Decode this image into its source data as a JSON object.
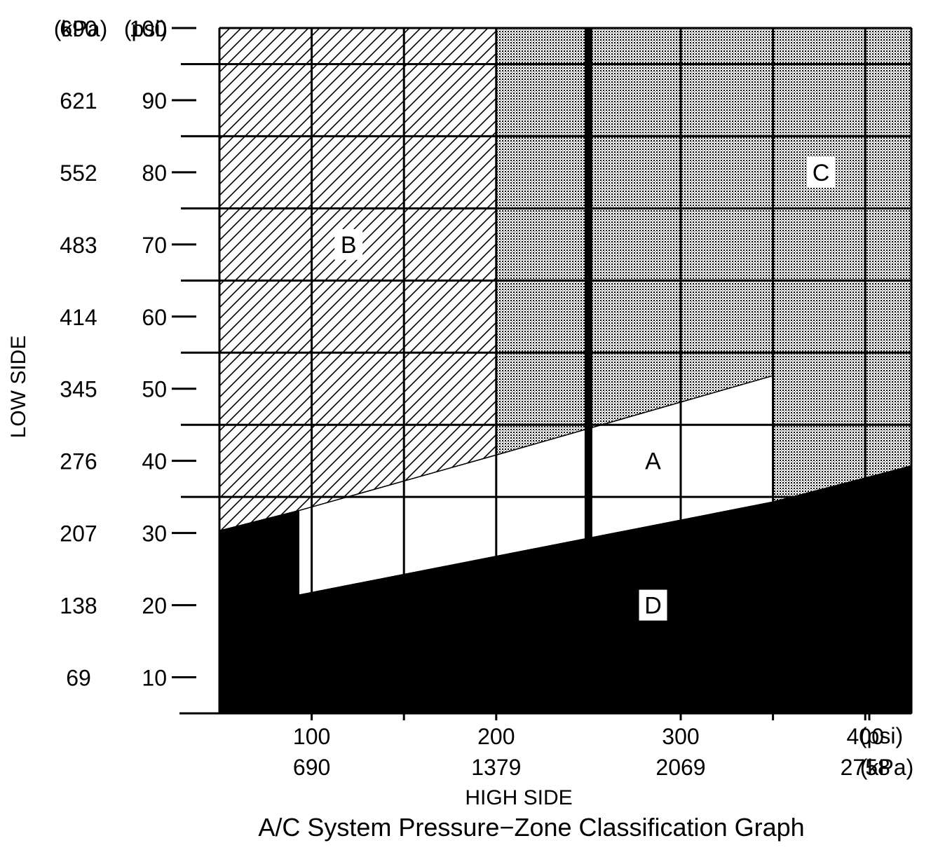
{
  "chart_data": {
    "type": "area",
    "title": "A/C System Pressure−Zone Classification Graph",
    "xlabel": "HIGH SIDE",
    "ylabel": "LOW SIDE",
    "x_unit_primary": "(psi)",
    "x_unit_secondary": "(kPa)",
    "y_unit_primary": "(psi)",
    "y_unit_secondary": "(kPa)",
    "xlim": [
      50,
      425
    ],
    "ylim": [
      5,
      100
    ],
    "grid": true,
    "x_ticks": [
      {
        "psi": 100,
        "psi_label": "100",
        "kpa_label": "690"
      },
      {
        "psi": 200,
        "psi_label": "200",
        "kpa_label": "1379"
      },
      {
        "psi": 300,
        "psi_label": "300",
        "kpa_label": "2069"
      },
      {
        "psi": 400,
        "psi_label": "400",
        "kpa_label": "2758"
      }
    ],
    "x_minor_ticks": [
      150,
      350
    ],
    "y_ticks": [
      {
        "psi": 100,
        "psi_label": "100",
        "kpa_label": "690"
      },
      {
        "psi": 90,
        "psi_label": "90",
        "kpa_label": "621"
      },
      {
        "psi": 80,
        "psi_label": "80",
        "kpa_label": "552"
      },
      {
        "psi": 70,
        "psi_label": "70",
        "kpa_label": "483"
      },
      {
        "psi": 60,
        "psi_label": "60",
        "kpa_label": "414"
      },
      {
        "psi": 50,
        "psi_label": "50",
        "kpa_label": "345"
      },
      {
        "psi": 40,
        "psi_label": "40",
        "kpa_label": "276"
      },
      {
        "psi": 30,
        "psi_label": "30",
        "kpa_label": "207"
      },
      {
        "psi": 20,
        "psi_label": "20",
        "kpa_label": "138"
      },
      {
        "psi": 10,
        "psi_label": "10",
        "kpa_label": "69"
      }
    ],
    "y_minor_ticks": [
      95,
      85,
      75,
      65,
      55,
      45,
      35,
      25,
      15
    ],
    "grid_x": [
      100,
      150,
      200,
      300,
      350,
      400
    ],
    "grid_y": [
      95,
      85,
      75,
      65,
      55,
      45,
      35
    ],
    "emphasis_x": 250,
    "zones": [
      {
        "name": "B",
        "label": "B",
        "fill": "hatch",
        "label_at": [
          120,
          70
        ],
        "polygon": [
          [
            50,
            100
          ],
          [
            200,
            100
          ],
          [
            200,
            40.8
          ],
          [
            93,
            33.1
          ],
          [
            50,
            30.3
          ]
        ]
      },
      {
        "name": "C",
        "label": "C",
        "fill": "stipple",
        "label_at": [
          376,
          80
        ],
        "polygon": [
          [
            200,
            100
          ],
          [
            425,
            100
          ],
          [
            425,
            39.3
          ],
          [
            350,
            34.3
          ],
          [
            350,
            51.8
          ],
          [
            200,
            40.8
          ]
        ]
      },
      {
        "name": "A",
        "label": "A",
        "fill": "white",
        "label_at": [
          285,
          40
        ],
        "polygon": [
          [
            93,
            33.1
          ],
          [
            200,
            40.8
          ],
          [
            350,
            51.8
          ],
          [
            350,
            34.3
          ],
          [
            93,
            21.4
          ]
        ]
      },
      {
        "name": "D",
        "label": "D",
        "fill": "solid",
        "label_at": [
          285,
          20
        ],
        "polygon": [
          [
            50,
            30.3
          ],
          [
            93,
            33.1
          ],
          [
            93,
            21.4
          ],
          [
            350,
            34.3
          ],
          [
            425,
            39.3
          ],
          [
            425,
            5
          ],
          [
            50,
            5
          ]
        ]
      }
    ]
  }
}
